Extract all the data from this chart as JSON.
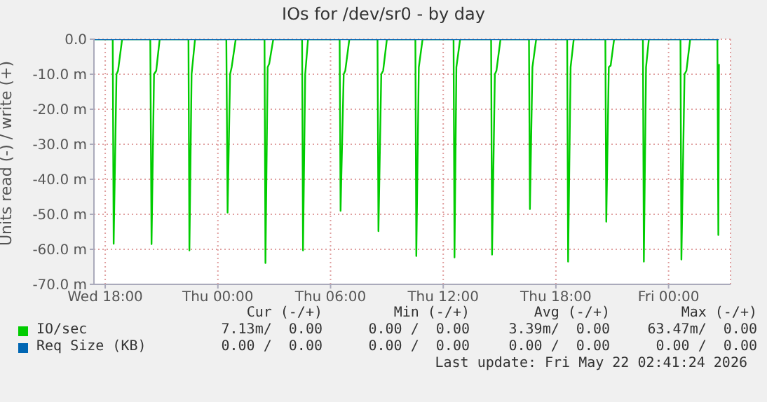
{
  "chart_data": {
    "type": "line",
    "title": "IOs for /dev/sr0 - by day",
    "ylabel": "Units read (-) / write (+)",
    "xlim": [
      "2026-05-20T17:24",
      "2026-05-22T03:18"
    ],
    "xticks": [
      {
        "value": "2026-05-20T18:00",
        "label": "Wed 18:00"
      },
      {
        "value": "2026-05-21T00:00",
        "label": "Thu 00:00"
      },
      {
        "value": "2026-05-21T06:00",
        "label": "Thu 06:00"
      },
      {
        "value": "2026-05-21T12:00",
        "label": "Thu 12:00"
      },
      {
        "value": "2026-05-21T18:00",
        "label": "Thu 18:00"
      },
      {
        "value": "2026-05-22T00:00",
        "label": "Fri 00:00"
      }
    ],
    "ylim": [
      -70,
      0
    ],
    "yticks": [
      {
        "value": -70,
        "label": "-70.0 m"
      },
      {
        "value": -60,
        "label": "-60.0 m"
      },
      {
        "value": -50,
        "label": "-50.0 m"
      },
      {
        "value": -40,
        "label": "-40.0 m"
      },
      {
        "value": -30,
        "label": "-30.0 m"
      },
      {
        "value": -20,
        "label": "-20.0 m"
      },
      {
        "value": -10,
        "label": "-10.0 m"
      },
      {
        "value": 0,
        "label": "0.0"
      }
    ],
    "grid": true,
    "legend": "bottom",
    "marker": "none",
    "line_style": "solid",
    "series": [
      {
        "name": "IO/sec",
        "color": "#00cc00",
        "x": [
          "2026-05-20T17:24",
          "2026-05-20T18:24",
          "2026-05-20T18:27",
          "2026-05-20T18:36",
          "2026-05-20T18:41",
          "2026-05-20T18:54",
          "2026-05-20T20:24",
          "2026-05-20T20:28",
          "2026-05-20T20:36",
          "2026-05-20T20:43",
          "2026-05-20T20:54",
          "2026-05-20T22:26",
          "2026-05-20T22:29",
          "2026-05-20T22:36",
          "2026-05-20T22:47",
          "2026-05-21T00:27",
          "2026-05-21T00:31",
          "2026-05-21T00:39",
          "2026-05-21T00:44",
          "2026-05-21T00:57",
          "2026-05-21T02:29",
          "2026-05-21T02:32",
          "2026-05-21T02:39",
          "2026-05-21T02:44",
          "2026-05-21T02:57",
          "2026-05-21T04:29",
          "2026-05-21T04:32",
          "2026-05-21T04:39",
          "2026-05-21T04:48",
          "2026-05-21T06:29",
          "2026-05-21T06:32",
          "2026-05-21T06:42",
          "2026-05-21T06:47",
          "2026-05-21T07:00",
          "2026-05-21T08:30",
          "2026-05-21T08:33",
          "2026-05-21T08:42",
          "2026-05-21T08:48",
          "2026-05-21T09:00",
          "2026-05-21T10:31",
          "2026-05-21T10:34",
          "2026-05-21T10:42",
          "2026-05-21T10:54",
          "2026-05-21T12:33",
          "2026-05-21T12:36",
          "2026-05-21T12:42",
          "2026-05-21T12:54",
          "2026-05-21T14:33",
          "2026-05-21T14:36",
          "2026-05-21T14:45",
          "2026-05-21T14:50",
          "2026-05-21T15:03",
          "2026-05-21T16:34",
          "2026-05-21T16:37",
          "2026-05-21T16:45",
          "2026-05-21T16:57",
          "2026-05-21T18:36",
          "2026-05-21T18:39",
          "2026-05-21T18:47",
          "2026-05-21T18:57",
          "2026-05-21T20:38",
          "2026-05-21T20:41",
          "2026-05-21T20:49",
          "2026-05-21T20:55",
          "2026-05-21T21:06",
          "2026-05-21T22:38",
          "2026-05-21T22:41",
          "2026-05-21T22:48",
          "2026-05-21T22:57",
          "2026-05-22T00:38",
          "2026-05-22T00:41",
          "2026-05-22T00:51",
          "2026-05-22T00:57",
          "2026-05-22T01:09",
          "2026-05-22T02:36",
          "2026-05-22T02:39",
          "2026-05-22T02:41"
        ],
        "values": [
          0,
          0,
          -58.4,
          -10,
          -9,
          0,
          0,
          -58.5,
          -10,
          -9,
          0,
          0,
          -60.3,
          -10,
          0,
          0,
          -49.5,
          -10,
          -8,
          0,
          0,
          -63.9,
          -8,
          -7,
          0,
          0,
          -60.3,
          -10,
          0,
          0,
          -49,
          -10,
          -9,
          0,
          0,
          -54.8,
          -10,
          -9,
          0,
          0,
          -61.9,
          -8,
          0,
          0,
          -62.3,
          -8,
          0,
          0,
          -61.5,
          -10,
          -9,
          0,
          0,
          -48.5,
          -8,
          0,
          0,
          -63.5,
          -8,
          0,
          0,
          -52.1,
          -8,
          -7.5,
          0,
          0,
          -63.5,
          -8,
          0,
          0,
          -62.9,
          -10,
          -9,
          0,
          0,
          -55.9,
          -7.1
        ]
      },
      {
        "name": "Req Size (KB)",
        "color": "#0066b3",
        "x": [
          "2026-05-20T17:24",
          "2026-05-22T02:41"
        ],
        "values": [
          0,
          0
        ]
      }
    ],
    "annotations": [
      "Cur (-/+)",
      "Min (-/+)",
      "Avg (-/+)",
      "Max (-/+)",
      "7.13m/  0.00",
      "0.00 /  0.00",
      "3.39m/  0.00",
      "63.47m/  0.00",
      "0.00 /  0.00",
      "0.00 /  0.00",
      "0.00 /  0.00",
      "0.00 /  0.00",
      "Last update: Fri May 22 02:41:24 2026"
    ]
  }
}
